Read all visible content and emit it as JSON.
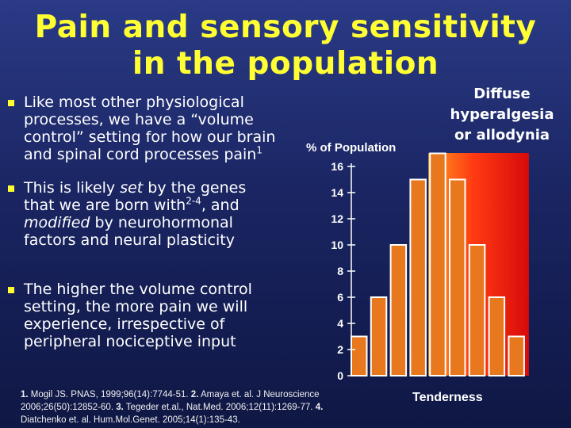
{
  "title": {
    "line1": "Pain and sensory sensitivity",
    "line2": "in the population"
  },
  "bullets": [
    {
      "l1": "Like most other physiological",
      "l2": "processes, we have a “volume",
      "l3": "control” setting for how our brain",
      "l4": "and spinal cord processes pain",
      "l4_sup": "1"
    },
    {
      "l1": "This is likely ",
      "l1_em": "set",
      "l1_tail": " by the genes",
      "l2": "that we are born with",
      "l2_sup": "2-4",
      "l2_tail": ", and",
      "l3_em": "modified",
      "l3_tail": " by neurohormonal",
      "l4": "factors and neural plasticity"
    },
    {
      "l1": "The higher the volume control",
      "l2": "setting, the more pain we will",
      "l3": "experience, irrespective of",
      "l4": "peripheral nociceptive input"
    }
  ],
  "references": {
    "n1": "1.",
    "r1": " Mogil JS. PNAS, 1999;96(14):7744-51. ",
    "n2": "2.",
    "r2": " Amaya et. al. J Neuroscience",
    "r2b": "2006;26(50):12852-60. ",
    "n3": "3.",
    "r3": " Tegeder et.al., Nat.Med. 2006;12(11):1269-77. ",
    "n4": "4.",
    "r4": "Diatchenko et. al. Hum.Mol.Genet. 2005;14(1):135-43."
  },
  "diffuse_label": {
    "l1": "Diffuse",
    "l2": "hyperalgesia",
    "l3": "or allodynia"
  },
  "colors": {
    "title": "#ffff33",
    "bar_fill": "#e8781e",
    "bar_stroke": "#ffffff",
    "background": "#1a2562",
    "highlight_red": "#e01010",
    "highlight_orange": "#ff8a1a"
  },
  "chart_data": {
    "type": "bar",
    "ylabel": "% of Population",
    "xlabel": "Tenderness",
    "ylim": [
      0,
      16
    ],
    "yticks": [
      0,
      2,
      4,
      6,
      8,
      10,
      12,
      14,
      16
    ],
    "values": [
      3,
      6,
      10,
      15,
      17,
      15,
      10,
      6,
      3
    ],
    "highlight_from_index": 4,
    "grid": false,
    "legend": "none"
  }
}
